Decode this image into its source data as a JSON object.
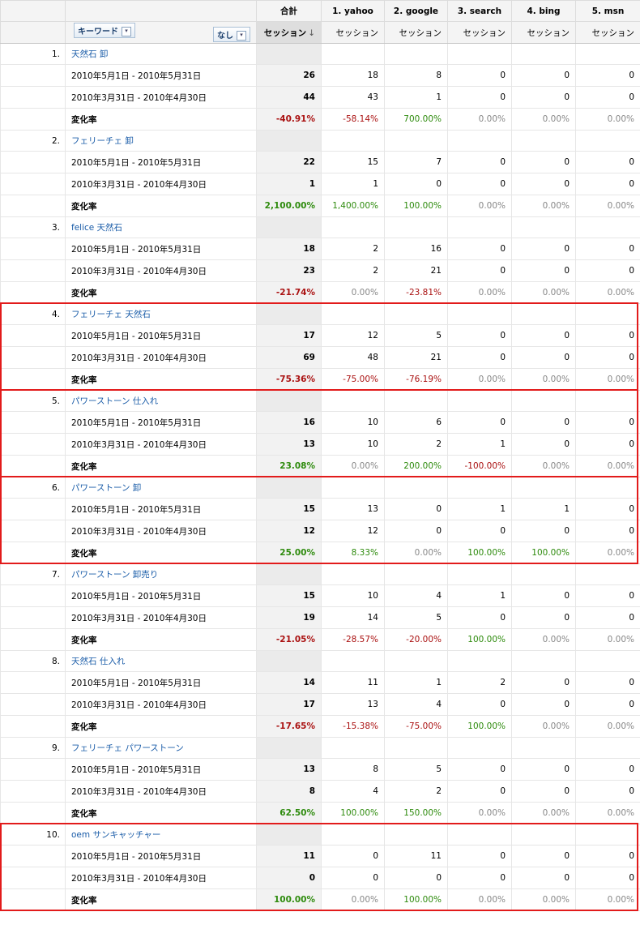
{
  "header": {
    "total_label": "合計",
    "sources": [
      "1. yahoo",
      "2. google",
      "3. search",
      "4. bing",
      "5. msn"
    ],
    "dimension_label": "キーワード",
    "secondary_label": "なし",
    "metric_label": "セッション",
    "sort_arrow": "↓"
  },
  "rows": [
    {
      "idx": "1.",
      "keyword": "天然石 卸",
      "p1": {
        "label": "2010年5月1日 - 2010年5月31日",
        "total": "26",
        "v": [
          "18",
          "8",
          "0",
          "0",
          "0"
        ]
      },
      "p2": {
        "label": "2010年3月31日 - 2010年4月30日",
        "total": "44",
        "v": [
          "43",
          "1",
          "0",
          "0",
          "0"
        ]
      },
      "chg": {
        "label": "変化率",
        "total": "-40.91%",
        "v": [
          "-58.14%",
          "700.00%",
          "0.00%",
          "0.00%",
          "0.00%"
        ]
      },
      "hl": false
    },
    {
      "idx": "2.",
      "keyword": "フェリーチェ 卸",
      "p1": {
        "label": "2010年5月1日 - 2010年5月31日",
        "total": "22",
        "v": [
          "15",
          "7",
          "0",
          "0",
          "0"
        ]
      },
      "p2": {
        "label": "2010年3月31日 - 2010年4月30日",
        "total": "1",
        "v": [
          "1",
          "0",
          "0",
          "0",
          "0"
        ]
      },
      "chg": {
        "label": "変化率",
        "total": "2,100.00%",
        "v": [
          "1,400.00%",
          "100.00%",
          "0.00%",
          "0.00%",
          "0.00%"
        ]
      },
      "hl": false
    },
    {
      "idx": "3.",
      "keyword": "felice 天然石",
      "p1": {
        "label": "2010年5月1日 - 2010年5月31日",
        "total": "18",
        "v": [
          "2",
          "16",
          "0",
          "0",
          "0"
        ]
      },
      "p2": {
        "label": "2010年3月31日 - 2010年4月30日",
        "total": "23",
        "v": [
          "2",
          "21",
          "0",
          "0",
          "0"
        ]
      },
      "chg": {
        "label": "変化率",
        "total": "-21.74%",
        "v": [
          "0.00%",
          "-23.81%",
          "0.00%",
          "0.00%",
          "0.00%"
        ]
      },
      "hl": false
    },
    {
      "idx": "4.",
      "keyword": "フェリーチェ 天然石",
      "p1": {
        "label": "2010年5月1日 - 2010年5月31日",
        "total": "17",
        "v": [
          "12",
          "5",
          "0",
          "0",
          "0"
        ]
      },
      "p2": {
        "label": "2010年3月31日 - 2010年4月30日",
        "total": "69",
        "v": [
          "48",
          "21",
          "0",
          "0",
          "0"
        ]
      },
      "chg": {
        "label": "変化率",
        "total": "-75.36%",
        "v": [
          "-75.00%",
          "-76.19%",
          "0.00%",
          "0.00%",
          "0.00%"
        ]
      },
      "hl": true
    },
    {
      "idx": "5.",
      "keyword": "パワーストーン 仕入れ",
      "p1": {
        "label": "2010年5月1日 - 2010年5月31日",
        "total": "16",
        "v": [
          "10",
          "6",
          "0",
          "0",
          "0"
        ]
      },
      "p2": {
        "label": "2010年3月31日 - 2010年4月30日",
        "total": "13",
        "v": [
          "10",
          "2",
          "1",
          "0",
          "0"
        ]
      },
      "chg": {
        "label": "変化率",
        "total": "23.08%",
        "v": [
          "0.00%",
          "200.00%",
          "-100.00%",
          "0.00%",
          "0.00%"
        ]
      },
      "hl": true
    },
    {
      "idx": "6.",
      "keyword": "パワーストーン 卸",
      "p1": {
        "label": "2010年5月1日 - 2010年5月31日",
        "total": "15",
        "v": [
          "13",
          "0",
          "1",
          "1",
          "0"
        ]
      },
      "p2": {
        "label": "2010年3月31日 - 2010年4月30日",
        "total": "12",
        "v": [
          "12",
          "0",
          "0",
          "0",
          "0"
        ]
      },
      "chg": {
        "label": "変化率",
        "total": "25.00%",
        "v": [
          "8.33%",
          "0.00%",
          "100.00%",
          "100.00%",
          "0.00%"
        ]
      },
      "hl": true
    },
    {
      "idx": "7.",
      "keyword": "パワーストーン 卸売り",
      "p1": {
        "label": "2010年5月1日 - 2010年5月31日",
        "total": "15",
        "v": [
          "10",
          "4",
          "1",
          "0",
          "0"
        ]
      },
      "p2": {
        "label": "2010年3月31日 - 2010年4月30日",
        "total": "19",
        "v": [
          "14",
          "5",
          "0",
          "0",
          "0"
        ]
      },
      "chg": {
        "label": "変化率",
        "total": "-21.05%",
        "v": [
          "-28.57%",
          "-20.00%",
          "100.00%",
          "0.00%",
          "0.00%"
        ]
      },
      "hl": false
    },
    {
      "idx": "8.",
      "keyword": "天然石 仕入れ",
      "p1": {
        "label": "2010年5月1日 - 2010年5月31日",
        "total": "14",
        "v": [
          "11",
          "1",
          "2",
          "0",
          "0"
        ]
      },
      "p2": {
        "label": "2010年3月31日 - 2010年4月30日",
        "total": "17",
        "v": [
          "13",
          "4",
          "0",
          "0",
          "0"
        ]
      },
      "chg": {
        "label": "変化率",
        "total": "-17.65%",
        "v": [
          "-15.38%",
          "-75.00%",
          "100.00%",
          "0.00%",
          "0.00%"
        ]
      },
      "hl": false
    },
    {
      "idx": "9.",
      "keyword": "フェリーチェ パワーストーン",
      "p1": {
        "label": "2010年5月1日 - 2010年5月31日",
        "total": "13",
        "v": [
          "8",
          "5",
          "0",
          "0",
          "0"
        ]
      },
      "p2": {
        "label": "2010年3月31日 - 2010年4月30日",
        "total": "8",
        "v": [
          "4",
          "2",
          "0",
          "0",
          "0"
        ]
      },
      "chg": {
        "label": "変化率",
        "total": "62.50%",
        "v": [
          "100.00%",
          "150.00%",
          "0.00%",
          "0.00%",
          "0.00%"
        ]
      },
      "hl": false
    },
    {
      "idx": "10.",
      "keyword": "oem サンキャッチャー",
      "p1": {
        "label": "2010年5月1日 - 2010年5月31日",
        "total": "11",
        "v": [
          "0",
          "11",
          "0",
          "0",
          "0"
        ]
      },
      "p2": {
        "label": "2010年3月31日 - 2010年4月30日",
        "total": "0",
        "v": [
          "0",
          "0",
          "0",
          "0",
          "0"
        ]
      },
      "chg": {
        "label": "変化率",
        "total": "100.00%",
        "v": [
          "0.00%",
          "100.00%",
          "0.00%",
          "0.00%",
          "0.00%"
        ]
      },
      "hl": true
    }
  ],
  "colors": {
    "negative": "#aa1111",
    "positive": "#2e8b0d",
    "zero": "#888888",
    "highlight": "#e21b1b",
    "link": "#1a5ca8"
  }
}
